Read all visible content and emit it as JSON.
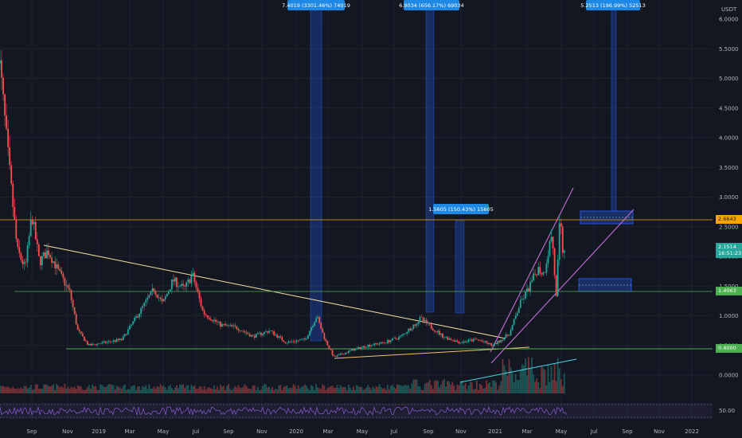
{
  "chart_data": {
    "type": "candlestick",
    "axis": {
      "unit": "USDT",
      "y_ticks": [
        "6.0000",
        "5.5000",
        "5.0000",
        "4.5000",
        "4.0000",
        "3.5000",
        "3.0000",
        "2.5000",
        "2.0000",
        "1.5000",
        "1.0000",
        "0.5000",
        "0.0000"
      ],
      "y_values": [
        6.0,
        5.5,
        5.0,
        4.5,
        4.0,
        3.5,
        3.0,
        2.5,
        2.0,
        1.5,
        1.0,
        0.5,
        0.0
      ],
      "x_ticks": [
        "Sep",
        "Nov",
        "2019",
        "Mar",
        "May",
        "Jul",
        "Sep",
        "Nov",
        "2020",
        "Mar",
        "May",
        "Jul",
        "Sep",
        "Nov",
        "2021",
        "Mar",
        "May",
        "Jul",
        "Sep",
        "Nov",
        "2022"
      ],
      "ylim": [
        0,
        6.2
      ],
      "grid": true
    },
    "price_path": [
      [
        "2018-07-01",
        5.5
      ],
      [
        "2018-07-20",
        3.6
      ],
      [
        "2018-08-05",
        2.1
      ],
      [
        "2018-08-20",
        1.8
      ],
      [
        "2018-09-01",
        2.7
      ],
      [
        "2018-09-15",
        1.9
      ],
      [
        "2018-10-01",
        2.1
      ],
      [
        "2018-10-20",
        1.75
      ],
      [
        "2018-11-10",
        1.4
      ],
      [
        "2018-11-25",
        0.75
      ],
      [
        "2018-12-15",
        0.5
      ],
      [
        "2019-01-15",
        0.55
      ],
      [
        "2019-02-15",
        0.6
      ],
      [
        "2019-03-15",
        1.0
      ],
      [
        "2019-04-15",
        1.45
      ],
      [
        "2019-05-01",
        1.2
      ],
      [
        "2019-05-20",
        1.6
      ],
      [
        "2019-06-10",
        1.45
      ],
      [
        "2019-06-25",
        1.7
      ],
      [
        "2019-07-15",
        1.05
      ],
      [
        "2019-08-15",
        0.85
      ],
      [
        "2019-09-15",
        0.8
      ],
      [
        "2019-10-15",
        0.65
      ],
      [
        "2019-11-15",
        0.75
      ],
      [
        "2019-12-15",
        0.55
      ],
      [
        "2020-01-20",
        0.6
      ],
      [
        "2020-02-10",
        1.0
      ],
      [
        "2020-02-25",
        0.6
      ],
      [
        "2020-03-13",
        0.3
      ],
      [
        "2020-04-15",
        0.42
      ],
      [
        "2020-05-15",
        0.5
      ],
      [
        "2020-06-15",
        0.55
      ],
      [
        "2020-07-15",
        0.65
      ],
      [
        "2020-08-20",
        0.95
      ],
      [
        "2020-09-10",
        0.8
      ],
      [
        "2020-10-01",
        0.65
      ],
      [
        "2020-11-01",
        0.55
      ],
      [
        "2020-12-01",
        0.6
      ],
      [
        "2021-01-01",
        0.5
      ],
      [
        "2021-02-01",
        0.7
      ],
      [
        "2021-02-20",
        1.2
      ],
      [
        "2021-03-10",
        1.5
      ],
      [
        "2021-03-25",
        1.8
      ],
      [
        "2021-04-05",
        1.7
      ],
      [
        "2021-04-20",
        2.4
      ],
      [
        "2021-04-28",
        1.3
      ],
      [
        "2021-05-05",
        2.65
      ],
      [
        "2021-05-10",
        2.1
      ],
      [
        "2021-05-14",
        2.15
      ]
    ],
    "horizontal_levels": [
      {
        "value": 2.6643,
        "label": "2.6643",
        "color": "#f7a600"
      },
      {
        "value": 1.4063,
        "label": "1.4063",
        "color": "#4caf50"
      },
      {
        "value": 0.4,
        "label": "0.4000",
        "color": "#4caf50"
      }
    ],
    "current_price": {
      "value": 2.1514,
      "label": "2.1514",
      "countdown": "16:51:23"
    },
    "measurement_labels": [
      {
        "text": "7.4019 (3301.46%) 74019"
      },
      {
        "text": "6.9034 (656.17%) 69034"
      },
      {
        "text": "5.2513 (196.99%) 52513"
      },
      {
        "text": "1.5605 (150.43%) 15605"
      }
    ],
    "oscillator": {
      "label": "50.00",
      "level": 50
    }
  }
}
